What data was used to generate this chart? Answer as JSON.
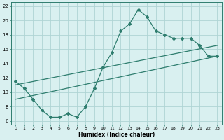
{
  "xlabel": "Humidex (Indice chaleur)",
  "x_data": [
    0,
    1,
    2,
    3,
    4,
    5,
    6,
    7,
    8,
    9,
    10,
    11,
    12,
    13,
    14,
    15,
    16,
    17,
    18,
    19,
    20,
    21,
    22,
    23
  ],
  "y_data": [
    11.5,
    10.5,
    9.0,
    7.5,
    6.5,
    6.5,
    7.0,
    6.5,
    8.0,
    10.5,
    13.5,
    15.5,
    18.5,
    19.5,
    21.5,
    20.5,
    18.5,
    18.0,
    17.5,
    17.5,
    17.5,
    16.5,
    15.0,
    15.0
  ],
  "line_color": "#2e7d6e",
  "bg_color": "#d9f0f0",
  "grid_color": "#aed4d4",
  "xlim": [
    -0.5,
    23.5
  ],
  "ylim": [
    5.5,
    22.5
  ],
  "xticks": [
    0,
    1,
    2,
    3,
    4,
    5,
    6,
    7,
    8,
    9,
    10,
    11,
    12,
    13,
    14,
    15,
    16,
    17,
    18,
    19,
    20,
    21,
    22,
    23
  ],
  "yticks": [
    6,
    8,
    10,
    12,
    14,
    16,
    18,
    20,
    22
  ],
  "trend1_x": [
    0,
    23
  ],
  "trend1_y": [
    11.0,
    16.5
  ],
  "trend2_x": [
    0,
    23
  ],
  "trend2_y": [
    9.0,
    15.0
  ]
}
